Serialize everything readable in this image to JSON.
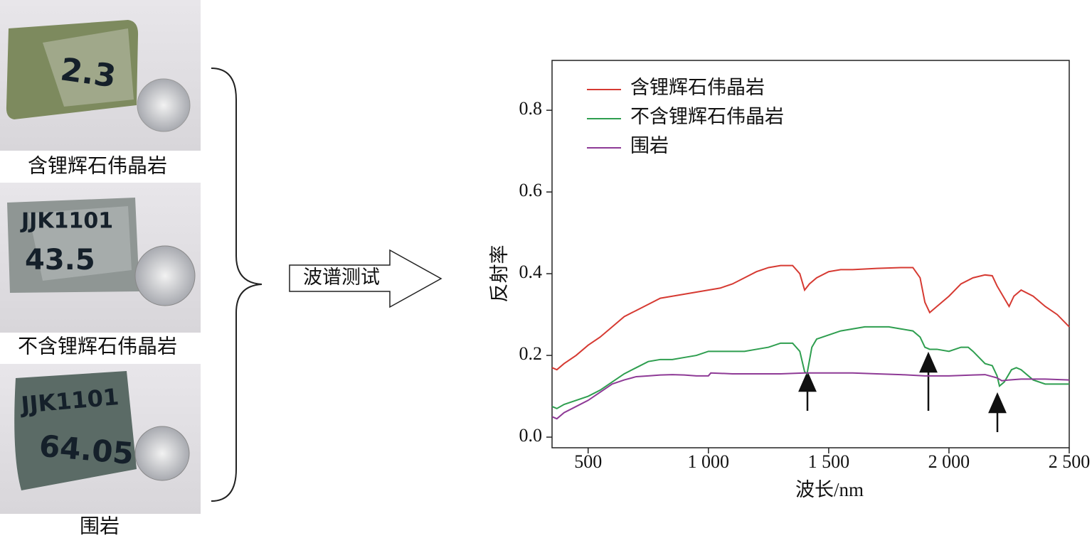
{
  "samples": [
    {
      "label": "含锂辉石伟晶岩",
      "rock_text": [
        "2.3"
      ]
    },
    {
      "label": "不含锂辉石伟晶岩",
      "rock_text": [
        "JJK1101",
        "43.5"
      ]
    },
    {
      "label": "围岩",
      "rock_text": [
        "JJK1101",
        "64.05"
      ]
    }
  ],
  "arrow_label": "波谱测试",
  "chart_data": {
    "type": "line",
    "x_label": "波长/nm",
    "y_label": "反射率",
    "xlim": [
      350,
      2500
    ],
    "ylim": [
      -0.026,
      0.922
    ],
    "xticks": [
      500,
      {
        "value": 1000,
        "label": "1 000"
      },
      {
        "value": 1500,
        "label": "1 500"
      },
      {
        "value": 2000,
        "label": "2 000"
      },
      {
        "value": 2500,
        "label": "2 500"
      }
    ],
    "yticks": [
      {
        "value": 0,
        "label": "0.0"
      },
      0.2,
      0.4,
      0.6,
      0.8
    ],
    "legend": "upper left",
    "series": [
      {
        "name": "含锂辉石伟晶岩",
        "color": "#d63a32",
        "x": [
          350,
          370,
          400,
          450,
          500,
          550,
          600,
          650,
          700,
          750,
          800,
          850,
          900,
          950,
          1000,
          1050,
          1100,
          1150,
          1200,
          1250,
          1300,
          1350,
          1380,
          1400,
          1420,
          1450,
          1500,
          1550,
          1600,
          1700,
          1800,
          1850,
          1880,
          1900,
          1920,
          1950,
          2000,
          2050,
          2100,
          2150,
          2180,
          2200,
          2230,
          2250,
          2270,
          2300,
          2350,
          2400,
          2450,
          2500
        ],
        "values": [
          0.17,
          0.165,
          0.18,
          0.2,
          0.225,
          0.245,
          0.27,
          0.295,
          0.31,
          0.325,
          0.34,
          0.345,
          0.35,
          0.355,
          0.36,
          0.365,
          0.375,
          0.39,
          0.405,
          0.415,
          0.42,
          0.42,
          0.4,
          0.36,
          0.375,
          0.39,
          0.405,
          0.41,
          0.41,
          0.413,
          0.415,
          0.415,
          0.39,
          0.33,
          0.305,
          0.32,
          0.345,
          0.375,
          0.39,
          0.397,
          0.395,
          0.37,
          0.34,
          0.32,
          0.345,
          0.36,
          0.345,
          0.32,
          0.3,
          0.27
        ]
      },
      {
        "name": "不含锂辉石伟晶岩",
        "color": "#2e9e4f",
        "x": [
          350,
          370,
          400,
          450,
          500,
          550,
          600,
          650,
          700,
          750,
          800,
          850,
          900,
          950,
          1000,
          1050,
          1100,
          1150,
          1200,
          1250,
          1300,
          1350,
          1380,
          1400,
          1410,
          1430,
          1450,
          1500,
          1550,
          1600,
          1650,
          1700,
          1750,
          1800,
          1850,
          1880,
          1900,
          1920,
          1950,
          2000,
          2050,
          2080,
          2100,
          2150,
          2180,
          2200,
          2210,
          2230,
          2260,
          2280,
          2300,
          2350,
          2400,
          2450,
          2500
        ],
        "values": [
          0.075,
          0.07,
          0.08,
          0.09,
          0.1,
          0.115,
          0.135,
          0.155,
          0.17,
          0.185,
          0.19,
          0.19,
          0.195,
          0.2,
          0.21,
          0.21,
          0.21,
          0.21,
          0.215,
          0.22,
          0.23,
          0.23,
          0.21,
          0.16,
          0.155,
          0.22,
          0.24,
          0.25,
          0.26,
          0.265,
          0.27,
          0.27,
          0.27,
          0.265,
          0.26,
          0.245,
          0.22,
          0.215,
          0.215,
          0.21,
          0.22,
          0.22,
          0.21,
          0.18,
          0.175,
          0.15,
          0.125,
          0.135,
          0.165,
          0.17,
          0.165,
          0.14,
          0.13,
          0.13,
          0.13
        ]
      },
      {
        "name": "围岩",
        "color": "#8e3a96",
        "x": [
          350,
          370,
          400,
          450,
          500,
          550,
          600,
          650,
          700,
          750,
          800,
          850,
          900,
          950,
          1000,
          1010,
          1100,
          1200,
          1300,
          1400,
          1500,
          1600,
          1700,
          1800,
          1900,
          2000,
          2100,
          2150,
          2200,
          2220,
          2250,
          2300,
          2400,
          2500
        ],
        "values": [
          0.05,
          0.045,
          0.06,
          0.075,
          0.09,
          0.11,
          0.13,
          0.14,
          0.148,
          0.15,
          0.152,
          0.153,
          0.152,
          0.15,
          0.15,
          0.157,
          0.155,
          0.155,
          0.155,
          0.157,
          0.157,
          0.157,
          0.155,
          0.153,
          0.15,
          0.15,
          0.152,
          0.153,
          0.145,
          0.138,
          0.14,
          0.142,
          0.142,
          0.14
        ]
      }
    ]
  }
}
